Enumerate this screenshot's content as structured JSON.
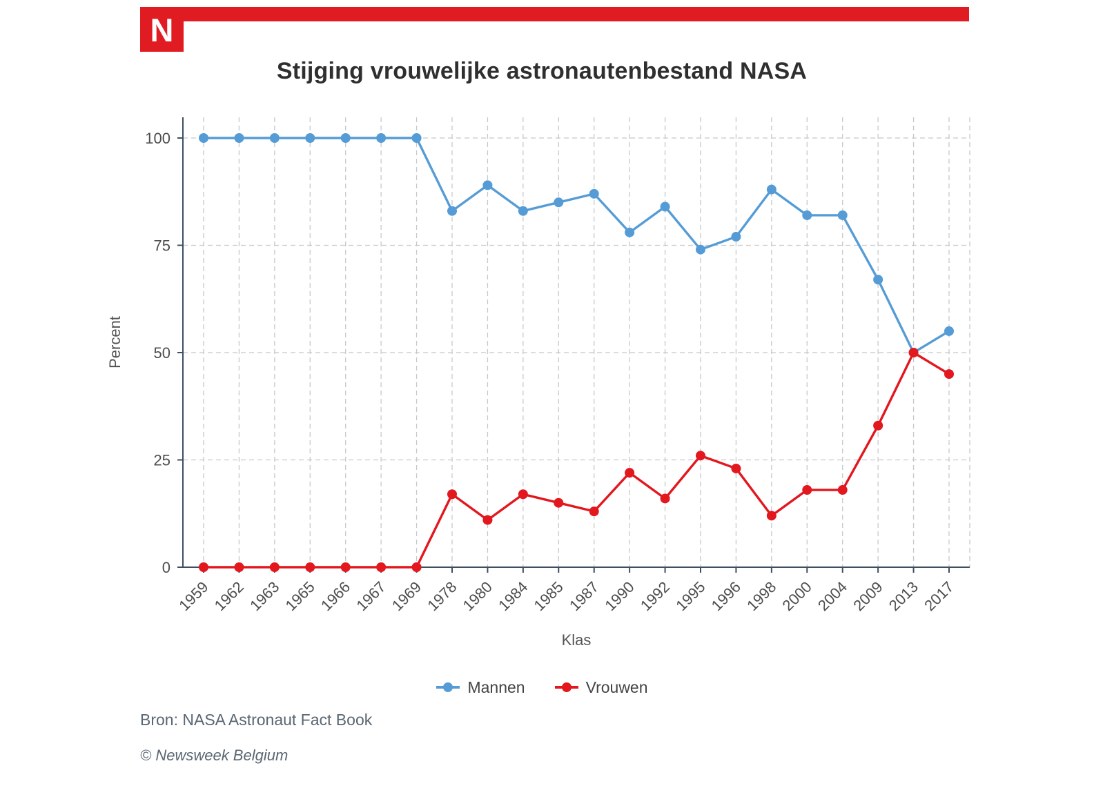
{
  "brand": {
    "logo_letter": "N",
    "color": "#e11b22"
  },
  "title": "Stijging vrouwelijke astronautenbestand NASA",
  "chart_data": {
    "type": "line",
    "x": [
      "1959",
      "1962",
      "1963",
      "1965",
      "1966",
      "1967",
      "1969",
      "1978",
      "1980",
      "1984",
      "1985",
      "1987",
      "1990",
      "1992",
      "1995",
      "1996",
      "1998",
      "2000",
      "2004",
      "2009",
      "2013",
      "2017"
    ],
    "series": [
      {
        "name": "Mannen",
        "color": "#559cd6",
        "values": [
          100,
          100,
          100,
          100,
          100,
          100,
          100,
          83,
          89,
          83,
          85,
          87,
          78,
          84,
          74,
          77,
          88,
          82,
          82,
          67,
          50,
          55
        ]
      },
      {
        "name": "Vrouwen",
        "color": "#e3171e",
        "values": [
          0,
          0,
          0,
          0,
          0,
          0,
          0,
          17,
          11,
          17,
          15,
          13,
          22,
          16,
          26,
          23,
          12,
          18,
          18,
          33,
          50,
          45
        ]
      }
    ],
    "xlabel": "Klas",
    "ylabel": "Percent",
    "yticks": [
      0,
      25,
      50,
      75,
      100
    ],
    "ylim": [
      0,
      105
    ],
    "grid": true,
    "legend_position": "bottom"
  },
  "footer": {
    "source": "Bron: NASA Astronaut Fact Book",
    "copyright": "© Newsweek Belgium"
  }
}
